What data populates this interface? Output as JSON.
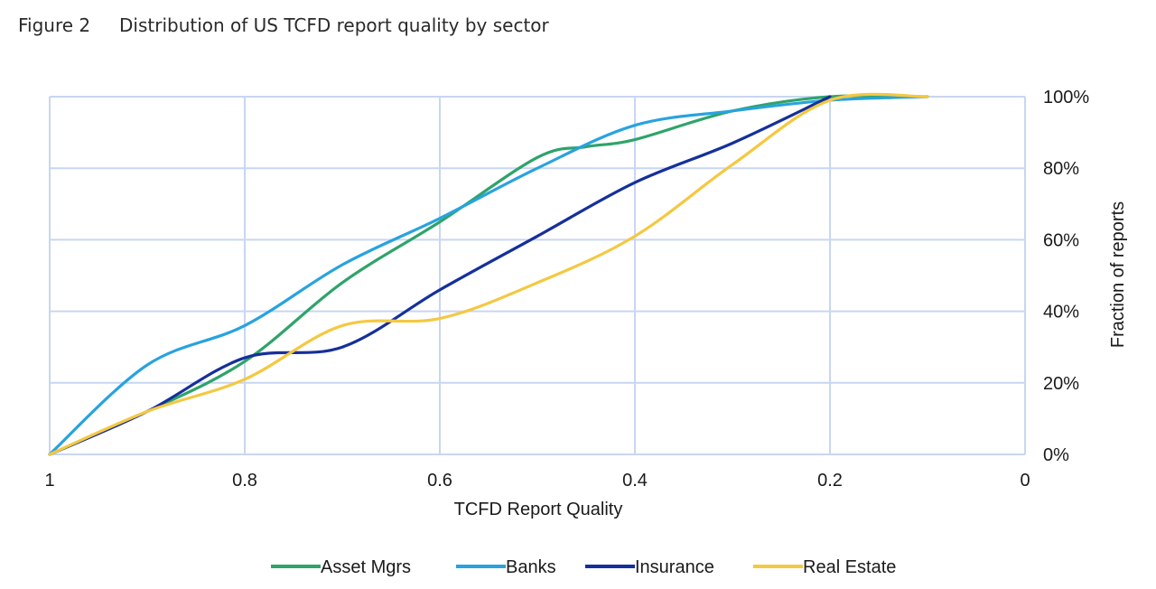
{
  "figure": {
    "label": "Figure 2",
    "title": "Distribution of US TCFD report quality by sector"
  },
  "chart_data": {
    "type": "line",
    "xlabel": "TCFD Report Quality",
    "ylabel": "Fraction of reports",
    "xlim": [
      1,
      0
    ],
    "x_reversed": true,
    "ylim": [
      0,
      1
    ],
    "x_ticks": [
      1,
      0.8,
      0.6,
      0.4,
      0.2,
      0
    ],
    "x_tick_labels": [
      "1",
      "0.8",
      "0.6",
      "0.4",
      "0.2",
      "0"
    ],
    "y_ticks": [
      0,
      0.2,
      0.4,
      0.6,
      0.8,
      1
    ],
    "y_tick_labels": [
      "0%",
      "20%",
      "40%",
      "60%",
      "80%",
      "100%"
    ],
    "y_axis_side": "right",
    "grid": true,
    "legend_position": "bottom",
    "series": [
      {
        "name": "Asset Mgrs",
        "color": "#2ea36a",
        "x": [
          1,
          0.9,
          0.8,
          0.7,
          0.6,
          0.5,
          0.45,
          0.4,
          0.3,
          0.2,
          0.1
        ],
        "y": [
          0,
          0.12,
          0.26,
          0.48,
          0.65,
          0.83,
          0.86,
          0.88,
          0.96,
          1.0,
          1.0
        ]
      },
      {
        "name": "Banks",
        "color": "#29a3e0",
        "x": [
          1,
          0.9,
          0.8,
          0.7,
          0.6,
          0.5,
          0.4,
          0.3,
          0.2,
          0.1
        ],
        "y": [
          0,
          0.25,
          0.36,
          0.53,
          0.66,
          0.8,
          0.92,
          0.96,
          0.99,
          1.0
        ]
      },
      {
        "name": "Insurance",
        "color": "#15309a",
        "x": [
          1,
          0.9,
          0.8,
          0.7,
          0.6,
          0.5,
          0.4,
          0.3,
          0.2
        ],
        "y": [
          0,
          0.12,
          0.27,
          0.3,
          0.46,
          0.61,
          0.76,
          0.87,
          1.0
        ]
      },
      {
        "name": "Real Estate",
        "color": "#f5c842",
        "x": [
          1,
          0.9,
          0.8,
          0.7,
          0.6,
          0.5,
          0.4,
          0.3,
          0.2,
          0.1
        ],
        "y": [
          0,
          0.12,
          0.21,
          0.36,
          0.38,
          0.48,
          0.61,
          0.81,
          0.99,
          1.0
        ]
      }
    ]
  }
}
